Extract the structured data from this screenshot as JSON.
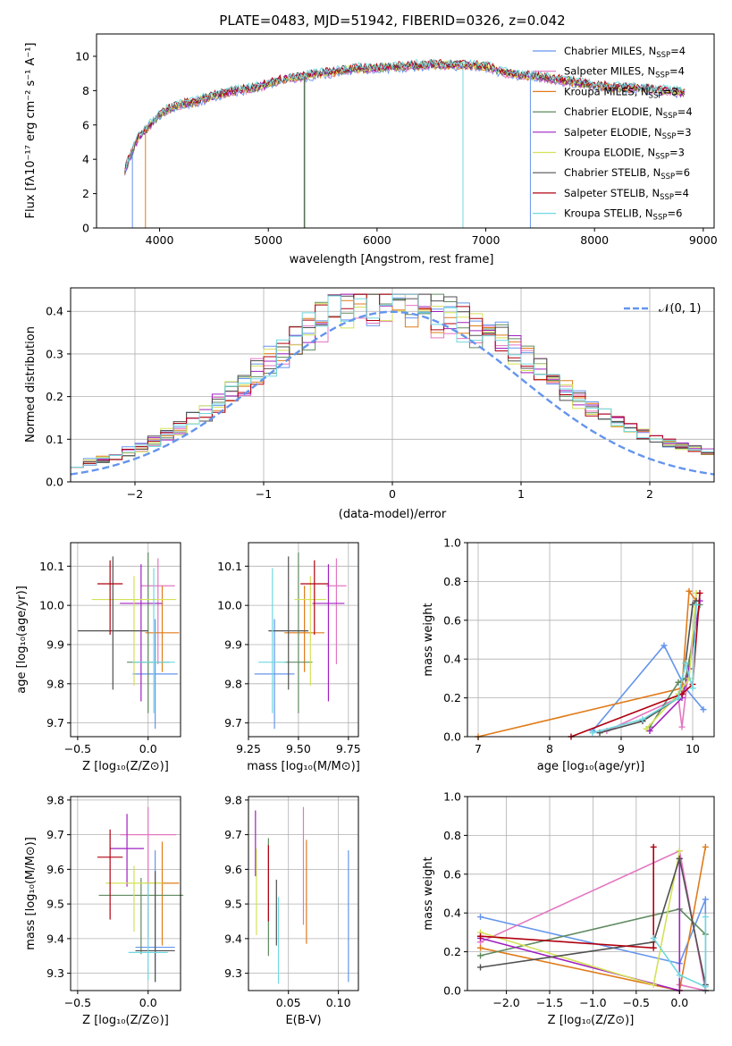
{
  "colors": {
    "palette": [
      "#6495ed",
      "#e377c2",
      "#e07b1a",
      "#5f8a5f",
      "#a020c0",
      "#d4e157",
      "#505050",
      "#b00010",
      "#70d8e0"
    ],
    "observed": "#808080",
    "normal": "#6495ed"
  },
  "figure_title": "PLATE=0483, MJD=51942, FIBERID=0326, z=0.042",
  "panels": {
    "spectrum": {
      "xlabel": "wavelength [Angstrom, rest frame]",
      "ylabel": "Flux [fλ10⁻¹⁷ erg cm⁻² s⁻¹ A⁻¹]",
      "xticks": [
        "4000",
        "5000",
        "6000",
        "7000",
        "8000",
        "9000"
      ],
      "yticks": [
        "0",
        "2",
        "4",
        "6",
        "8",
        "10"
      ]
    },
    "hist": {
      "xlabel": "(data-model)/error",
      "ylabel": "Normed distribution",
      "xticks": [
        "−2",
        "−1",
        "0",
        "1",
        "2"
      ],
      "yticks": [
        "0.0",
        "0.1",
        "0.2",
        "0.3",
        "0.4"
      ],
      "legend_label": "𝒩(0, 1)"
    },
    "age_z": {
      "xlabel": "Z [log₁₀(Z/Z⊙)]",
      "ylabel": "age  [log₁₀(age/yr)]",
      "xticks": [
        "−0.5",
        "0.0"
      ],
      "yticks": [
        "9.7",
        "9.8",
        "9.9",
        "10.0",
        "10.1"
      ]
    },
    "age_mass": {
      "xlabel": "mass [log₁₀(M/M⊙)]",
      "xticks": [
        "9.25",
        "9.50",
        "9.75"
      ],
      "yticks": [
        "9.7",
        "9.8",
        "9.9",
        "10.0",
        "10.1"
      ]
    },
    "mw_age": {
      "xlabel": "age  [log₁₀(age/yr)]",
      "ylabel": "mass weight",
      "xticks": [
        "7",
        "8",
        "9",
        "10"
      ],
      "yticks": [
        "0.0",
        "0.2",
        "0.4",
        "0.6",
        "0.8",
        "1.0"
      ]
    },
    "mass_z": {
      "xlabel": "Z [log₁₀(Z/Z⊙)]",
      "ylabel": "mass [log₁₀(M/M⊙)]",
      "xticks": [
        "−0.5",
        "0.0"
      ],
      "yticks": [
        "9.3",
        "9.4",
        "9.5",
        "9.6",
        "9.7",
        "9.8"
      ]
    },
    "mass_ebv": {
      "xlabel": "E(B-V)",
      "xticks": [
        "0.05",
        "0.10"
      ],
      "yticks": [
        "9.3",
        "9.4",
        "9.5",
        "9.6",
        "9.7",
        "9.8"
      ]
    },
    "mw_z": {
      "xlabel": "Z [log₁₀(Z/Z⊙)]",
      "ylabel": "mass weight",
      "xticks": [
        "−2.0",
        "−1.5",
        "−1.0",
        "−0.5",
        "0.0"
      ],
      "yticks": [
        "0.0",
        "0.2",
        "0.4",
        "0.6",
        "0.8",
        "1.0"
      ]
    }
  },
  "chart_data": [
    {
      "type": "line",
      "title": "PLATE=0483, MJD=51942, FIBERID=0326, z=0.042",
      "xlabel": "wavelength [Angstrom, rest frame]",
      "ylabel": "Flux [fλ10⁻¹⁷ erg cm⁻² s⁻¹ A⁻¹]",
      "xlim": [
        3420,
        9100
      ],
      "ylim": [
        0,
        11.3
      ],
      "legend": "top-right",
      "grid": false,
      "continuum_x": [
        3680,
        3800,
        3900,
        4000,
        4100,
        4200,
        4300,
        4400,
        4500,
        4700,
        4900,
        5000,
        5100,
        5300,
        5500,
        5800,
        6000,
        6200,
        6500,
        6800,
        7000,
        7200,
        7500,
        7800,
        8000,
        8200,
        8500,
        8800
      ],
      "continuum_y": [
        3.4,
        5.2,
        5.9,
        6.6,
        7.0,
        7.2,
        7.3,
        7.5,
        7.7,
        8.0,
        8.2,
        8.4,
        8.6,
        8.8,
        9.0,
        9.3,
        9.3,
        9.4,
        9.5,
        9.5,
        9.4,
        9.0,
        8.8,
        8.5,
        8.3,
        8.2,
        8.1,
        7.9
      ],
      "series": [
        {
          "name": "Chabrier MILES, N_SSP=4",
          "legend_label": "Chabrier MILES, N",
          "legend_sub": "SSP",
          "legend_tail": "=4"
        },
        {
          "name": "Salpeter MILES, N_SSP=4",
          "legend_label": "Salpeter MILES, N",
          "legend_sub": "SSP",
          "legend_tail": "=4"
        },
        {
          "name": "Kroupa MILES, N_SSP=3",
          "legend_label": "Kroupa MILES, N",
          "legend_sub": "SSP",
          "legend_tail": "=3"
        },
        {
          "name": "Chabrier ELODIE, N_SSP=4",
          "legend_label": "Chabrier ELODIE, N",
          "legend_sub": "SSP",
          "legend_tail": "=4"
        },
        {
          "name": "Salpeter ELODIE, N_SSP=3",
          "legend_label": "Salpeter ELODIE, N",
          "legend_sub": "SSP",
          "legend_tail": "=3"
        },
        {
          "name": "Kroupa ELODIE, N_SSP=3",
          "legend_label": "Kroupa ELODIE, N",
          "legend_sub": "SSP",
          "legend_tail": "=3"
        },
        {
          "name": "Chabrier STELIB, N_SSP=6",
          "legend_label": "Chabrier STELIB, N",
          "legend_sub": "SSP",
          "legend_tail": "=6"
        },
        {
          "name": "Salpeter STELIB, N_SSP=4",
          "legend_label": "Salpeter STELIB, N",
          "legend_sub": "SSP",
          "legend_tail": "=4"
        },
        {
          "name": "Kroupa STELIB, N_SSP=6",
          "legend_label": "Kroupa STELIB, N",
          "legend_sub": "SSP",
          "legend_tail": "=6"
        }
      ]
    },
    {
      "type": "bar",
      "xlabel": "(data-model)/error",
      "ylabel": "Normed distribution",
      "xlim": [
        -2.5,
        2.5
      ],
      "ylim": [
        0,
        0.455
      ],
      "grid": true,
      "legend": "top-right",
      "bin_edges_start": -2.5,
      "bin_width": 0.1,
      "histogram_base": [
        0.045,
        0.05,
        0.05,
        0.06,
        0.07,
        0.07,
        0.06,
        0.07,
        0.085,
        0.09,
        0.11,
        0.11,
        0.12,
        0.13,
        0.15,
        0.17,
        0.19,
        0.2,
        0.21,
        0.22,
        0.23,
        0.25,
        0.26,
        0.28,
        0.29,
        0.3,
        0.32,
        0.34,
        0.35,
        0.36,
        0.37,
        0.37,
        0.34,
        0.33,
        0.35,
        0.32,
        0.31,
        0.34,
        0.33,
        0.32,
        0.33,
        0.32,
        0.3,
        0.33,
        0.32,
        0.3,
        0.31,
        0.3,
        0.29,
        0.29,
        0.28,
        0.27,
        0.26,
        0.25,
        0.24,
        0.23,
        0.21,
        0.2,
        0.19,
        0.18,
        0.17,
        0.16,
        0.15,
        0.14,
        0.13,
        0.12,
        0.11,
        0.11,
        0.1,
        0.09,
        0.085,
        0.08,
        0.08,
        0.075,
        0.07,
        0.07,
        0.065,
        0.06,
        0.06,
        0.055,
        0.05,
        0.05,
        0.045,
        0.045,
        0.04,
        0.04,
        0.04,
        0.04,
        0.04,
        0.04,
        0.04,
        0.04,
        0.04,
        0.04,
        0.04,
        0.04,
        0.04,
        0.04,
        0.04,
        0.04
      ],
      "normal_curve": {
        "name": "N(0,1)",
        "mean": 0,
        "sigma": 1
      }
    },
    {
      "type": "scatter",
      "xlabel": "Z [log₁₀(Z/Z⊙)]",
      "ylabel": "age  [log₁₀(age/yr)]",
      "xlim": [
        -0.55,
        0.23
      ],
      "ylim": [
        9.665,
        10.16
      ],
      "grid": true,
      "points": [
        {
          "x": 0.05,
          "xerr": 0.16,
          "y": 9.825,
          "yerr": [
            0.14,
            0.14
          ]
        },
        {
          "x": 0.07,
          "xerr": 0.12,
          "y": 10.05,
          "yerr": [
            0.2,
            0.07
          ]
        },
        {
          "x": 0.1,
          "xerr": 0.12,
          "y": 9.93,
          "yerr": [
            0.1,
            0.12
          ]
        },
        {
          "x": 0.0,
          "xerr": 0.15,
          "y": 9.855,
          "yerr": [
            0.13,
            0.28
          ]
        },
        {
          "x": -0.05,
          "xerr": 0.15,
          "y": 10.005,
          "yerr": [
            0.25,
            0.1
          ]
        },
        {
          "x": -0.1,
          "xerr": 0.3,
          "y": 10.015,
          "yerr": [
            0.22,
            0.06
          ]
        },
        {
          "x": -0.25,
          "xerr": 0.25,
          "y": 9.935,
          "yerr": [
            0.15,
            0.19
          ]
        },
        {
          "x": -0.27,
          "xerr": 0.09,
          "y": 10.055,
          "yerr": [
            0.13,
            0.06
          ]
        },
        {
          "x": 0.04,
          "xerr": 0.15,
          "y": 9.855,
          "yerr": [
            0.13,
            0.24
          ]
        }
      ]
    },
    {
      "type": "scatter",
      "xlabel": "mass [log₁₀(M/M⊙)]",
      "ylabel": "",
      "xlim": [
        9.25,
        9.8
      ],
      "ylim": [
        9.665,
        10.16
      ],
      "grid": true,
      "points": [
        {
          "x": 9.38,
          "xerr": 0.1,
          "y": 9.825,
          "yerr": [
            0.14,
            0.14
          ]
        },
        {
          "x": 9.69,
          "xerr": 0.05,
          "y": 10.05,
          "yerr": [
            0.2,
            0.07
          ]
        },
        {
          "x": 9.53,
          "xerr": 0.1,
          "y": 9.93,
          "yerr": [
            0.1,
            0.12
          ]
        },
        {
          "x": 9.5,
          "xerr": 0.07,
          "y": 9.855,
          "yerr": [
            0.13,
            0.28
          ]
        },
        {
          "x": 9.65,
          "xerr": 0.08,
          "y": 10.005,
          "yerr": [
            0.25,
            0.1
          ]
        },
        {
          "x": 9.56,
          "xerr": 0.08,
          "y": 10.015,
          "yerr": [
            0.22,
            0.06
          ]
        },
        {
          "x": 9.45,
          "xerr": 0.1,
          "y": 9.935,
          "yerr": [
            0.15,
            0.19
          ]
        },
        {
          "x": 9.58,
          "xerr": 0.07,
          "y": 10.055,
          "yerr": [
            0.13,
            0.06
          ]
        },
        {
          "x": 9.37,
          "xerr": 0.07,
          "y": 9.855,
          "yerr": [
            0.13,
            0.24
          ]
        }
      ]
    },
    {
      "type": "line",
      "xlabel": "age  [log₁₀(age/yr)]",
      "ylabel": "mass weight",
      "xlim": [
        6.85,
        10.3
      ],
      "ylim": [
        0,
        1
      ],
      "grid": true,
      "series": [
        {
          "x": [
            8.6,
            9.6,
            9.9,
            10.15
          ],
          "y": [
            0.03,
            0.47,
            0.25,
            0.14
          ]
        },
        {
          "x": [
            8.8,
            9.8,
            9.85,
            10.05
          ],
          "y": [
            0.03,
            0.2,
            0.05,
            0.68
          ]
        },
        {
          "x": [
            7.0,
            9.85,
            9.95,
            10.05
          ],
          "y": [
            0.0,
            0.25,
            0.75,
            0.7
          ]
        },
        {
          "x": [
            9.4,
            9.8,
            9.9,
            10.1
          ],
          "y": [
            0.05,
            0.28,
            0.3,
            0.68
          ]
        },
        {
          "x": [
            9.4,
            9.85,
            9.95,
            10.1
          ],
          "y": [
            0.03,
            0.2,
            0.35,
            0.7
          ]
        },
        {
          "x": [
            9.35,
            9.8,
            9.95,
            10.05
          ],
          "y": [
            0.04,
            0.22,
            0.3,
            0.74
          ]
        },
        {
          "x": [
            8.7,
            9.3,
            9.8,
            9.9,
            10.0,
            10.05
          ],
          "y": [
            0.02,
            0.08,
            0.2,
            0.38,
            0.68,
            0.7
          ]
        },
        {
          "x": [
            8.3,
            9.85,
            10.0,
            10.1
          ],
          "y": [
            0.0,
            0.22,
            0.27,
            0.74
          ]
        },
        {
          "x": [
            8.6,
            9.3,
            9.8,
            9.9,
            10.0,
            10.05
          ],
          "y": [
            0.02,
            0.09,
            0.2,
            0.38,
            0.25,
            0.68
          ]
        }
      ]
    },
    {
      "type": "scatter",
      "xlabel": "Z [log₁₀(Z/Z⊙)]",
      "ylabel": "mass [log₁₀(M/M⊙)]",
      "xlim": [
        -0.55,
        0.23
      ],
      "ylim": [
        9.25,
        9.81
      ],
      "grid": true,
      "points": [
        {
          "x": 0.05,
          "xerr": 0.14,
          "y": 9.375,
          "yerr": [
            0.1,
            0.28
          ]
        },
        {
          "x": 0.0,
          "xerr": 0.2,
          "y": 9.7,
          "yerr": [
            0.3,
            0.08
          ]
        },
        {
          "x": 0.1,
          "xerr": 0.12,
          "y": 9.56,
          "yerr": [
            0.18,
            0.12
          ]
        },
        {
          "x": -0.05,
          "xerr": 0.3,
          "y": 9.525,
          "yerr": [
            0.17,
            0.05
          ]
        },
        {
          "x": -0.15,
          "xerr": 0.12,
          "y": 9.66,
          "yerr": [
            0.11,
            0.1
          ]
        },
        {
          "x": -0.1,
          "xerr": 0.2,
          "y": 9.56,
          "yerr": [
            0.14,
            0.05
          ]
        },
        {
          "x": 0.05,
          "xerr": 0.14,
          "y": 9.365,
          "yerr": [
            0.09,
            0.23
          ]
        },
        {
          "x": -0.27,
          "xerr": 0.09,
          "y": 9.635,
          "yerr": [
            0.18,
            0.08
          ]
        },
        {
          "x": 0.0,
          "xerr": 0.14,
          "y": 9.36,
          "yerr": [
            0.08,
            0.2
          ]
        }
      ]
    },
    {
      "type": "scatter",
      "xlabel": "E(B-V)",
      "ylabel": "",
      "xlim": [
        0.01,
        0.12
      ],
      "ylim": [
        9.25,
        9.81
      ],
      "grid": true,
      "points": [
        {
          "x": 0.11,
          "y": 9.465,
          "yerr": [
            0.19,
            0.19
          ]
        },
        {
          "x": 0.065,
          "y": 9.68,
          "yerr": [
            0.24,
            0.1
          ]
        },
        {
          "x": 0.068,
          "y": 9.535,
          "yerr": [
            0.15,
            0.15
          ]
        },
        {
          "x": 0.03,
          "y": 9.52,
          "yerr": [
            0.17,
            0.17
          ]
        },
        {
          "x": 0.017,
          "y": 9.68,
          "yerr": [
            0.1,
            0.09
          ]
        },
        {
          "x": 0.018,
          "y": 9.55,
          "yerr": [
            0.14,
            0.11
          ]
        },
        {
          "x": 0.038,
          "y": 9.48,
          "yerr": [
            0.1,
            0.09
          ]
        },
        {
          "x": 0.03,
          "y": 9.61,
          "yerr": [
            0.16,
            0.06
          ]
        },
        {
          "x": 0.04,
          "y": 9.41,
          "yerr": [
            0.14,
            0.11
          ]
        }
      ]
    },
    {
      "type": "line",
      "xlabel": "Z [log₁₀(Z/Z⊙)]",
      "ylabel": "mass weight",
      "xlim": [
        -2.45,
        0.4
      ],
      "ylim": [
        0,
        1
      ],
      "grid": true,
      "series": [
        {
          "x": [
            -2.3,
            0.0,
            0.3,
            0.3
          ],
          "y": [
            0.38,
            0.14,
            0.47,
            0.0
          ]
        },
        {
          "x": [
            -2.3,
            0.0,
            0.3,
            0.0
          ],
          "y": [
            0.25,
            0.72,
            0.0,
            0.03
          ]
        },
        {
          "x": [
            -2.3,
            0.0,
            0.3
          ],
          "y": [
            0.22,
            0.0,
            0.74
          ]
        },
        {
          "x": [
            -2.3,
            0.0,
            0.3,
            0.3
          ],
          "y": [
            0.18,
            0.42,
            0.29,
            0.0
          ]
        },
        {
          "x": [
            -2.3,
            0.0,
            0.0
          ],
          "y": [
            0.27,
            0.0,
            0.68
          ]
        },
        {
          "x": [
            -2.3,
            -0.3,
            0.0
          ],
          "y": [
            0.3,
            0.03,
            0.72
          ]
        },
        {
          "x": [
            -2.3,
            -0.3,
            0.0,
            0.3
          ],
          "y": [
            0.12,
            0.25,
            0.68,
            0.03
          ]
        },
        {
          "x": [
            -2.3,
            -0.3,
            -0.3
          ],
          "y": [
            0.28,
            0.22,
            0.74
          ]
        },
        {
          "x": [
            -0.3,
            0.0,
            0.3,
            0.3
          ],
          "y": [
            0.27,
            0.08,
            0.02,
            0.38
          ]
        }
      ]
    }
  ]
}
